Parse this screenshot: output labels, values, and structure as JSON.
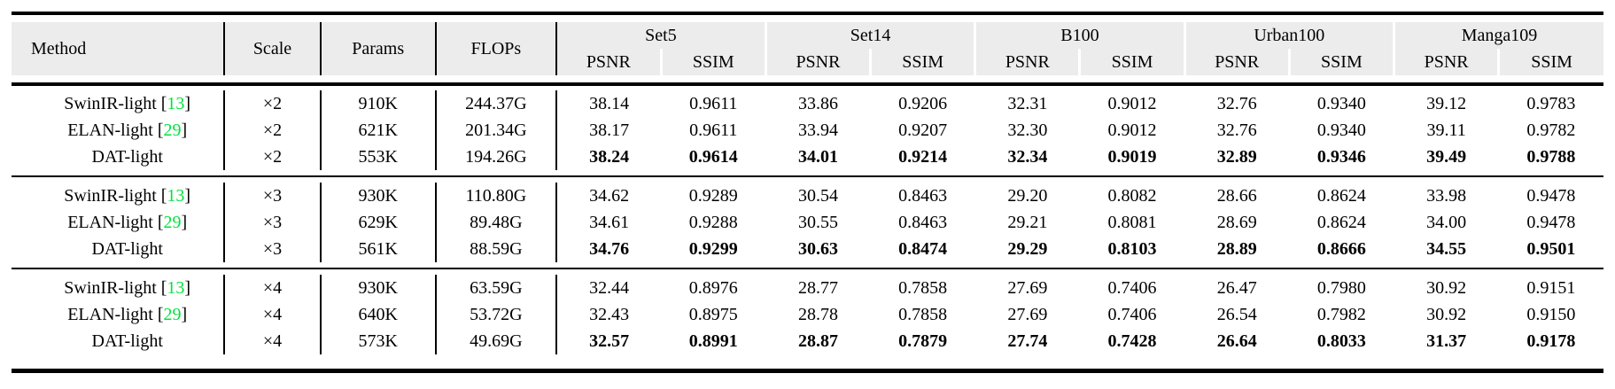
{
  "colors": {
    "header_bg": "#ececec",
    "citation_green": "#00e33c",
    "rule_black": "#000000"
  },
  "table": {
    "header": {
      "method": "Method",
      "scale": "Scale",
      "params": "Params",
      "flops": "FLOPs",
      "datasets": [
        "Set5",
        "Set14",
        "B100",
        "Urban100",
        "Manga109"
      ],
      "metrics": [
        "PSNR",
        "SSIM"
      ]
    },
    "groups": [
      {
        "scale_factor": "×2",
        "rows": [
          {
            "method": "SwinIR-light",
            "cite": "13",
            "scale": "×2",
            "params": "910K",
            "flops": "244.37G",
            "bold": false,
            "values": [
              "38.14",
              "0.9611",
              "33.86",
              "0.9206",
              "32.31",
              "0.9012",
              "32.76",
              "0.9340",
              "39.12",
              "0.9783"
            ]
          },
          {
            "method": "ELAN-light",
            "cite": "29",
            "scale": "×2",
            "params": "621K",
            "flops": "201.34G",
            "bold": false,
            "values": [
              "38.17",
              "0.9611",
              "33.94",
              "0.9207",
              "32.30",
              "0.9012",
              "32.76",
              "0.9340",
              "39.11",
              "0.9782"
            ]
          },
          {
            "method": "DAT-light",
            "cite": null,
            "scale": "×2",
            "params": "553K",
            "flops": "194.26G",
            "bold": true,
            "values": [
              "38.24",
              "0.9614",
              "34.01",
              "0.9214",
              "32.34",
              "0.9019",
              "32.89",
              "0.9346",
              "39.49",
              "0.9788"
            ]
          }
        ]
      },
      {
        "scale_factor": "×3",
        "rows": [
          {
            "method": "SwinIR-light",
            "cite": "13",
            "scale": "×3",
            "params": "930K",
            "flops": "110.80G",
            "bold": false,
            "values": [
              "34.62",
              "0.9289",
              "30.54",
              "0.8463",
              "29.20",
              "0.8082",
              "28.66",
              "0.8624",
              "33.98",
              "0.9478"
            ]
          },
          {
            "method": "ELAN-light",
            "cite": "29",
            "scale": "×3",
            "params": "629K",
            "flops": "89.48G",
            "bold": false,
            "values": [
              "34.61",
              "0.9288",
              "30.55",
              "0.8463",
              "29.21",
              "0.8081",
              "28.69",
              "0.8624",
              "34.00",
              "0.9478"
            ]
          },
          {
            "method": "DAT-light",
            "cite": null,
            "scale": "×3",
            "params": "561K",
            "flops": "88.59G",
            "bold": true,
            "values": [
              "34.76",
              "0.9299",
              "30.63",
              "0.8474",
              "29.29",
              "0.8103",
              "28.89",
              "0.8666",
              "34.55",
              "0.9501"
            ]
          }
        ]
      },
      {
        "scale_factor": "×4",
        "rows": [
          {
            "method": "SwinIR-light",
            "cite": "13",
            "scale": "×4",
            "params": "930K",
            "flops": "63.59G",
            "bold": false,
            "values": [
              "32.44",
              "0.8976",
              "28.77",
              "0.7858",
              "27.69",
              "0.7406",
              "26.47",
              "0.7980",
              "30.92",
              "0.9151"
            ]
          },
          {
            "method": "ELAN-light",
            "cite": "29",
            "scale": "×4",
            "params": "640K",
            "flops": "53.72G",
            "bold": false,
            "values": [
              "32.43",
              "0.8975",
              "28.78",
              "0.7858",
              "27.69",
              "0.7406",
              "26.54",
              "0.7982",
              "30.92",
              "0.9150"
            ]
          },
          {
            "method": "DAT-light",
            "cite": null,
            "scale": "×4",
            "params": "573K",
            "flops": "49.69G",
            "bold": true,
            "values": [
              "32.57",
              "0.8991",
              "28.87",
              "0.7879",
              "27.74",
              "0.7428",
              "26.64",
              "0.8033",
              "31.37",
              "0.9178"
            ]
          }
        ]
      }
    ]
  }
}
